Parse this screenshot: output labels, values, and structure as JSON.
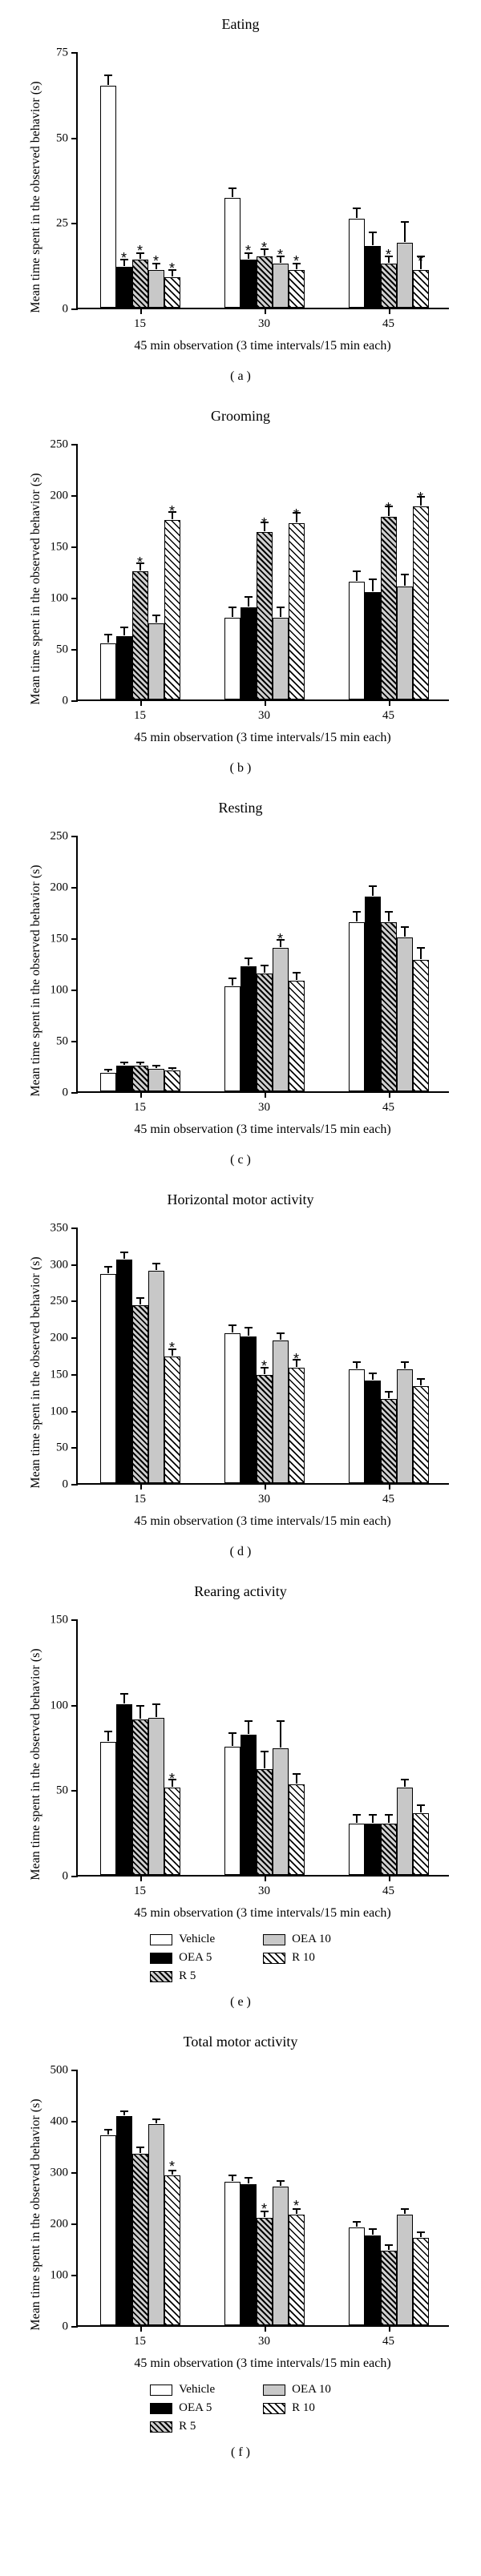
{
  "ylabel": "Mean time spent in\nthe observed behavior (s)",
  "xlabel": "45 min observation (3 time intervals/15 min each)",
  "categories": [
    "15",
    "30",
    "45"
  ],
  "series": [
    {
      "name": "Vehicle",
      "fill": "fill-white"
    },
    {
      "name": "OEA 5",
      "fill": "fill-black"
    },
    {
      "name": "R 5",
      "fill": "fill-hatch1"
    },
    {
      "name": "OEA 10",
      "fill": "fill-gray"
    },
    {
      "name": "R 10",
      "fill": "fill-hatch2"
    }
  ],
  "legendLeft": [
    "Vehicle",
    "OEA 5",
    "R 5"
  ],
  "legendRight": [
    "OEA 10",
    "R 10"
  ],
  "charts": [
    {
      "title": "Eating",
      "sub": "( a )",
      "ymax": 75,
      "ystep": 25,
      "showLegend": false,
      "data": [
        [
          65,
          12,
          14,
          11,
          9
        ],
        [
          32,
          14,
          15,
          13,
          11
        ],
        [
          26,
          18,
          13,
          19,
          11
        ]
      ],
      "err": [
        [
          3,
          2,
          2,
          2,
          2
        ],
        [
          3,
          2,
          2,
          2,
          2
        ],
        [
          3,
          4,
          2,
          6,
          4
        ]
      ],
      "stars": [
        [
          0,
          1,
          1,
          1,
          1
        ],
        [
          0,
          1,
          1,
          1,
          1
        ],
        [
          0,
          0,
          1,
          0,
          1
        ]
      ]
    },
    {
      "title": "Grooming",
      "sub": "( b )",
      "ymax": 250,
      "ystep": 50,
      "showLegend": false,
      "data": [
        [
          55,
          62,
          125,
          74,
          175
        ],
        [
          80,
          90,
          163,
          80,
          172
        ],
        [
          115,
          105,
          178,
          110,
          188
        ]
      ],
      "err": [
        [
          8,
          8,
          8,
          8,
          8
        ],
        [
          10,
          10,
          10,
          10,
          10
        ],
        [
          10,
          12,
          10,
          12,
          10
        ]
      ],
      "stars": [
        [
          0,
          0,
          1,
          0,
          1
        ],
        [
          0,
          0,
          1,
          0,
          1
        ],
        [
          0,
          0,
          1,
          0,
          1
        ]
      ]
    },
    {
      "title": "Resting",
      "sub": "( c )",
      "ymax": 250,
      "ystep": 50,
      "showLegend": false,
      "data": [
        [
          18,
          25,
          25,
          22,
          20
        ],
        [
          102,
          122,
          115,
          140,
          108
        ],
        [
          165,
          190,
          165,
          150,
          128
        ]
      ],
      "err": [
        [
          3,
          3,
          3,
          3,
          3
        ],
        [
          8,
          8,
          8,
          8,
          8
        ],
        [
          10,
          10,
          10,
          10,
          12
        ]
      ],
      "stars": [
        [
          0,
          0,
          0,
          0,
          0
        ],
        [
          0,
          0,
          0,
          1,
          0
        ],
        [
          0,
          0,
          0,
          0,
          0
        ]
      ]
    },
    {
      "title": "Horizontal motor activity",
      "sub": "( d )",
      "ymax": 350,
      "ystep": 50,
      "showLegend": false,
      "data": [
        [
          285,
          305,
          243,
          290,
          173
        ],
        [
          205,
          200,
          148,
          195,
          158
        ],
        [
          155,
          140,
          115,
          155,
          132
        ]
      ],
      "err": [
        [
          10,
          10,
          10,
          10,
          10
        ],
        [
          10,
          12,
          10,
          10,
          10
        ],
        [
          10,
          10,
          10,
          10,
          10
        ]
      ],
      "stars": [
        [
          0,
          0,
          0,
          0,
          1
        ],
        [
          0,
          0,
          1,
          0,
          1
        ],
        [
          0,
          0,
          0,
          0,
          0
        ]
      ]
    },
    {
      "title": "Rearing activity",
      "sub": "( e )",
      "ymax": 150,
      "ystep": 50,
      "showLegend": true,
      "data": [
        [
          78,
          100,
          91,
          92,
          51
        ],
        [
          75,
          82,
          62,
          74,
          53
        ],
        [
          30,
          30,
          30,
          51,
          36
        ]
      ],
      "err": [
        [
          6,
          6,
          8,
          8,
          5
        ],
        [
          8,
          8,
          10,
          16,
          6
        ],
        [
          5,
          5,
          5,
          5,
          5
        ]
      ],
      "stars": [
        [
          0,
          0,
          0,
          0,
          1
        ],
        [
          0,
          0,
          0,
          0,
          0
        ],
        [
          0,
          0,
          0,
          0,
          0
        ]
      ]
    },
    {
      "title": "Total motor activity",
      "sub": "( f )",
      "ymax": 500,
      "ystep": 100,
      "showLegend": true,
      "data": [
        [
          370,
          408,
          335,
          392,
          292
        ],
        [
          280,
          275,
          210,
          270,
          215
        ],
        [
          190,
          175,
          145,
          215,
          170
        ]
      ],
      "err": [
        [
          12,
          10,
          12,
          10,
          10
        ],
        [
          12,
          12,
          12,
          12,
          12
        ],
        [
          12,
          12,
          12,
          12,
          12
        ]
      ],
      "stars": [
        [
          0,
          0,
          0,
          0,
          1
        ],
        [
          0,
          0,
          1,
          0,
          1
        ],
        [
          0,
          0,
          0,
          0,
          0
        ]
      ]
    }
  ]
}
